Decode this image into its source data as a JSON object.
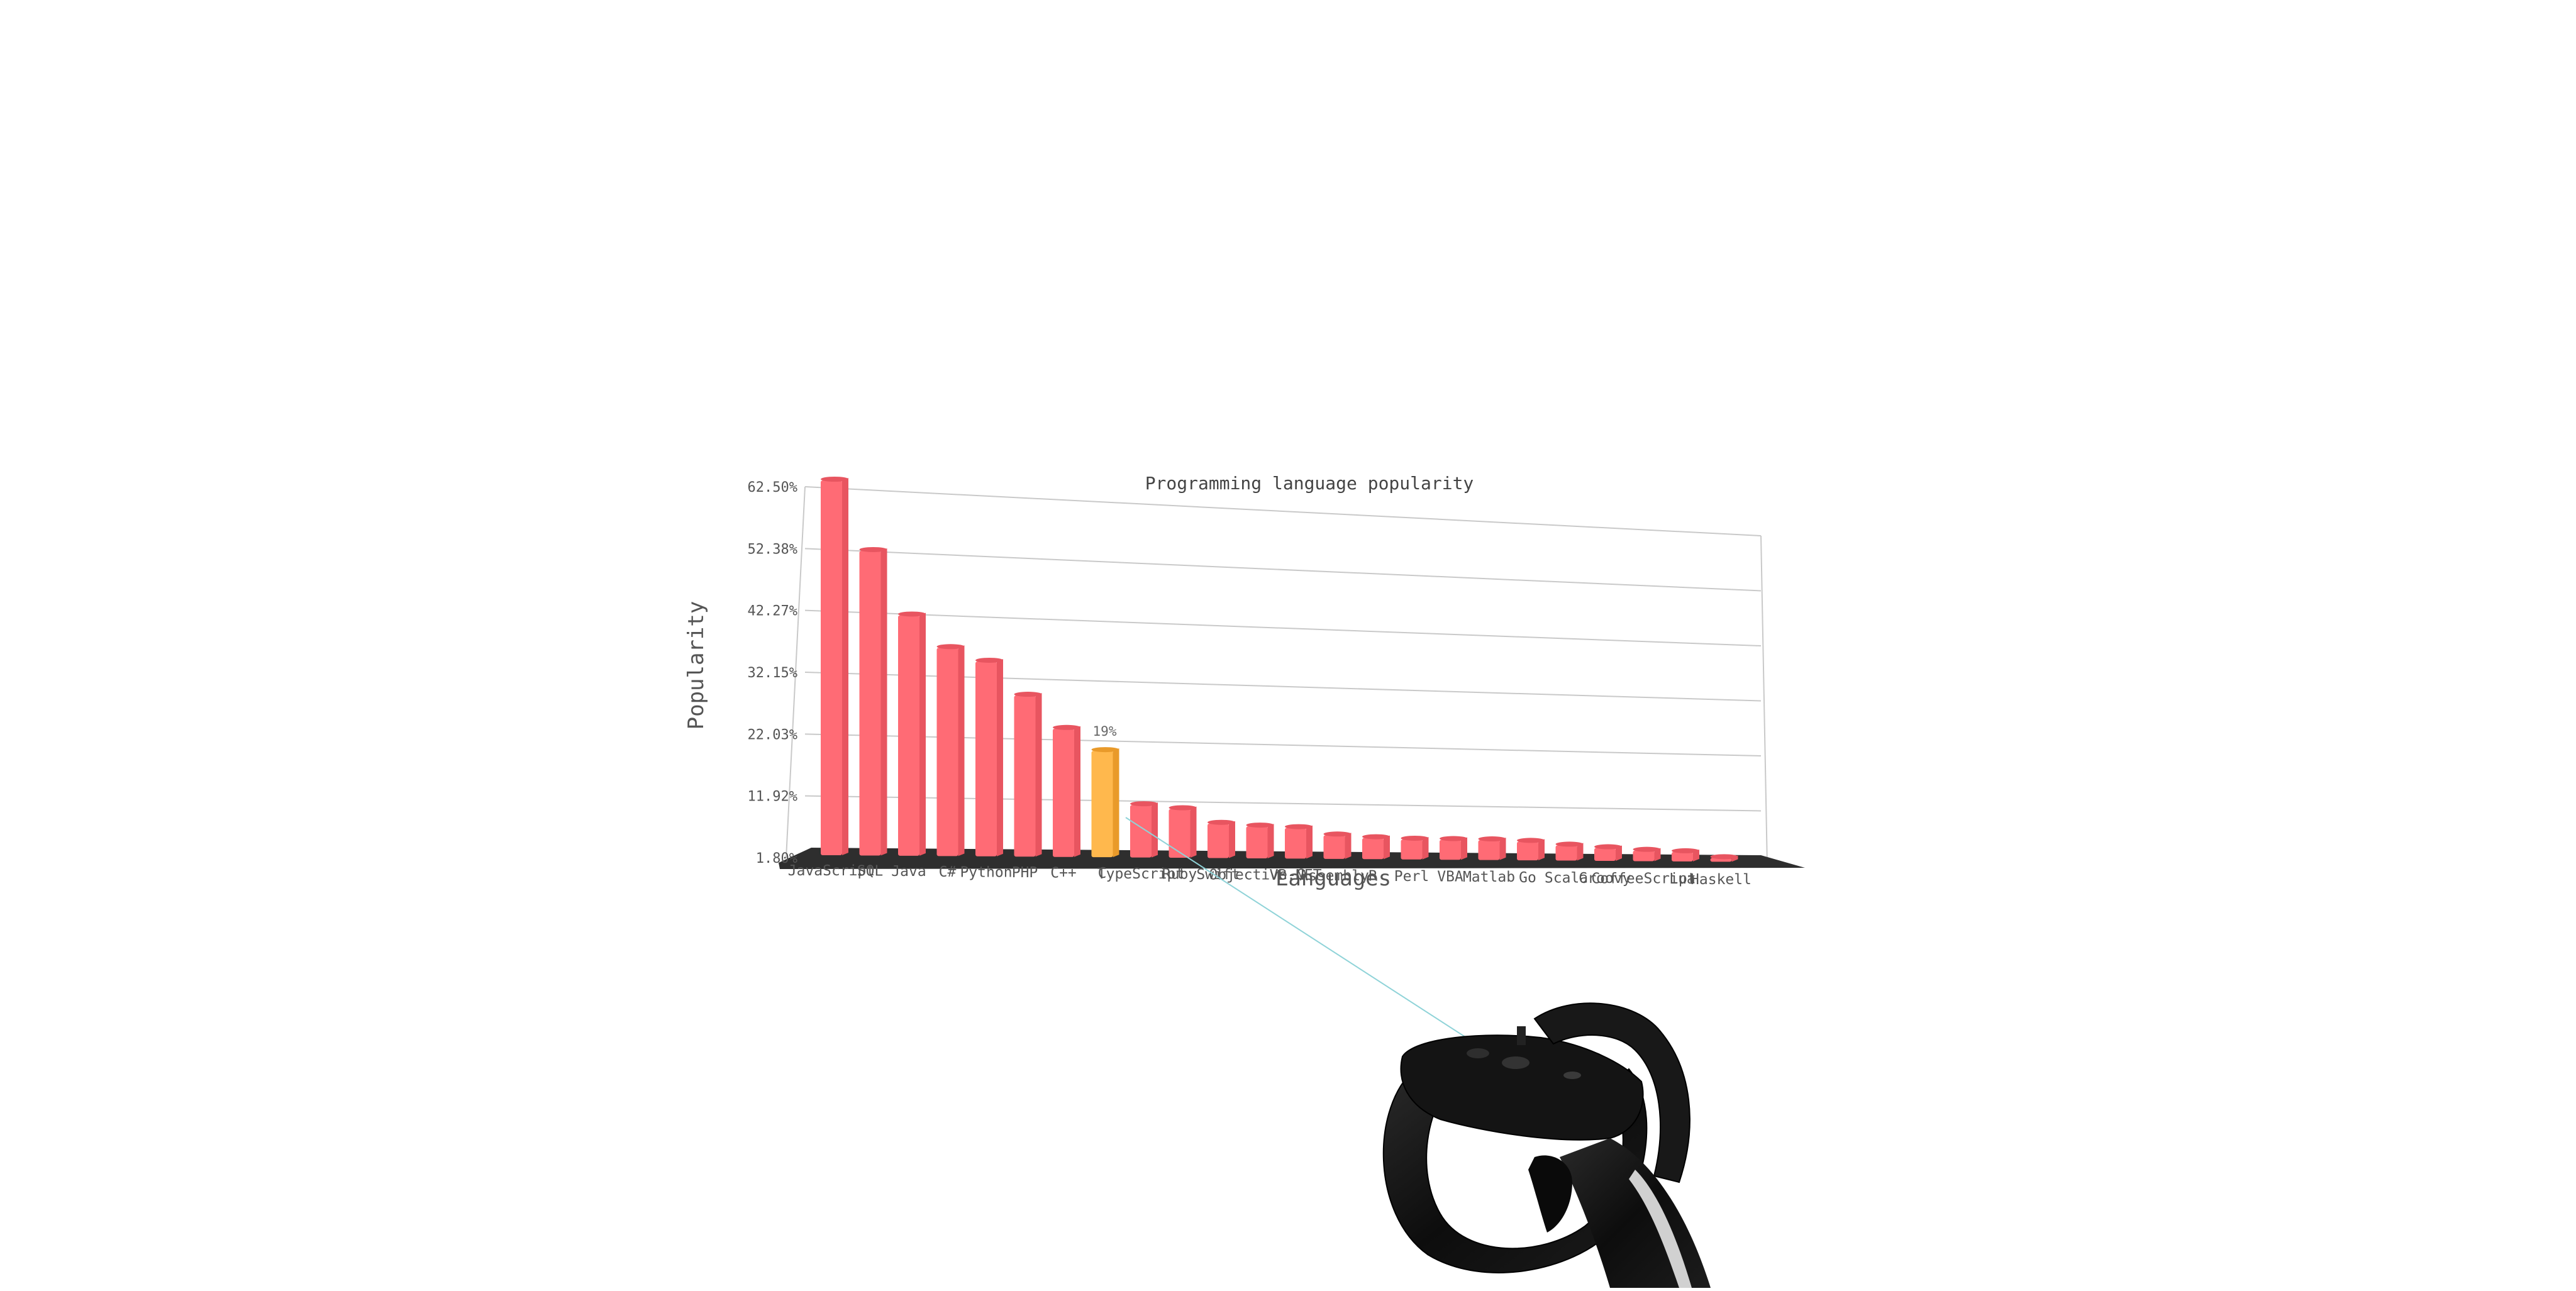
{
  "chart_data": {
    "type": "bar",
    "title": "Programming language popularity",
    "xlabel": "Languages",
    "ylabel": "Popularity",
    "ylim": [
      1.8,
      62.5
    ],
    "yticks": [
      "1.80%",
      "11.92%",
      "22.03%",
      "32.15%",
      "42.27%",
      "52.38%",
      "62.50%"
    ],
    "categories": [
      "JavaScript",
      "SQL",
      "Java",
      "C#",
      "Python",
      "PHP",
      "C++",
      "C",
      "TypeScript",
      "Ruby",
      "Swift",
      "Objective-C",
      "VB.NET",
      "Assembly",
      "R",
      "Perl",
      "VBA",
      "Matlab",
      "Go",
      "Scala",
      "Groovy",
      "CoffeeScript",
      "Lua",
      "Haskell"
    ],
    "values": [
      62.5,
      51.2,
      40.8,
      35.6,
      33.5,
      28.0,
      22.6,
      19.0,
      10.0,
      9.4,
      7.0,
      6.6,
      6.4,
      5.2,
      4.8,
      4.6,
      4.6,
      4.6,
      4.4,
      3.8,
      3.4,
      3.0,
      2.8,
      1.8
    ],
    "highlight": {
      "category": "C",
      "label": "19%"
    },
    "colors": {
      "bar": "#ff6b75",
      "highlight": "#ffb84d",
      "floor": "#2e2e2e",
      "grid": "#c9c9c9",
      "pointer": "#8fd3d8"
    },
    "grid": true,
    "legend": "none"
  },
  "scene": {
    "controller": "vr-controller-icon"
  }
}
